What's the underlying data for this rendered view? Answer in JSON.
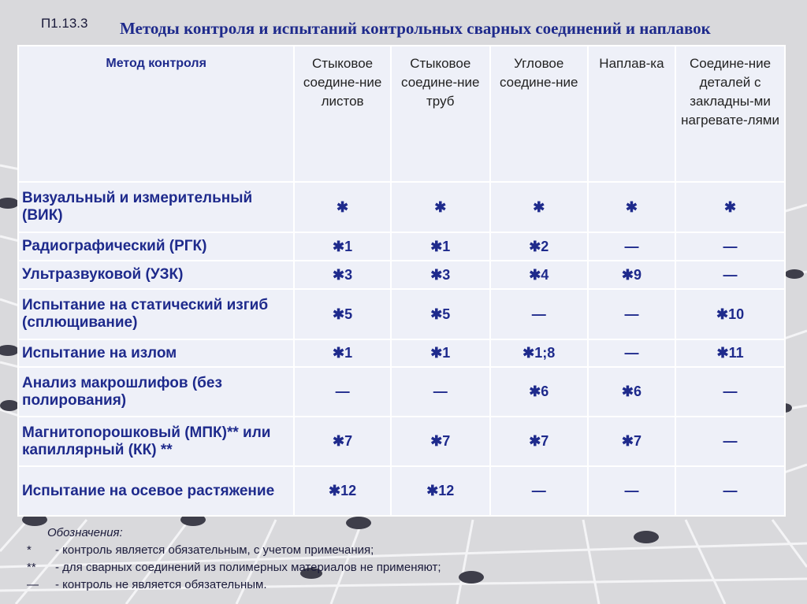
{
  "header": {
    "code": "П1.13.3",
    "title": "Методы контроля и испытаний контрольных сварных соединений и наплавок"
  },
  "table": {
    "columns": [
      "Метод контроля",
      "Стыковое соедине-ние листов",
      "Стыковое соедине-ние труб",
      "Угловое соедине-ние",
      "Наплав-ка",
      "Соедине-ние деталей с закладны-ми нагревате-лями"
    ],
    "rows": [
      [
        "Визуальный и измерительный (ВИК)",
        "✱",
        "✱",
        "✱",
        "✱",
        "✱"
      ],
      [
        "Радиографический (РГК)",
        "✱1",
        "✱1",
        "✱2",
        "—",
        "—"
      ],
      [
        "Ультразвуковой (УЗК)",
        "✱3",
        "✱3",
        "✱4",
        "✱9",
        "—"
      ],
      [
        "Испытание на статический изгиб (сплющивание)",
        "✱5",
        "✱5",
        "—",
        "—",
        "✱10"
      ],
      [
        "Испытание на излом",
        "✱1",
        "✱1",
        "✱1;8",
        "—",
        "✱11"
      ],
      [
        "Анализ макрошлифов (без полирования)",
        "—",
        "—",
        "✱6",
        "✱6",
        "—"
      ],
      [
        "Магнитопорошковый (МПК)** или капиллярный (КК) **",
        "✱7",
        "✱7",
        "✱7",
        "✱7",
        "—"
      ],
      [
        "Испытание на осевое растяжение",
        "✱12",
        "✱12",
        "—",
        "—",
        "—"
      ]
    ]
  },
  "legend": {
    "title": "Обозначения:",
    "items": [
      {
        "symbol": "*",
        "text": "- контроль является обязательным, с учетом примечания;"
      },
      {
        "symbol": "**",
        "text": "- для сварных соединений из полимерных материалов не применяют;"
      },
      {
        "symbol": "—",
        "text": "- контроль не является обязательным."
      }
    ]
  }
}
